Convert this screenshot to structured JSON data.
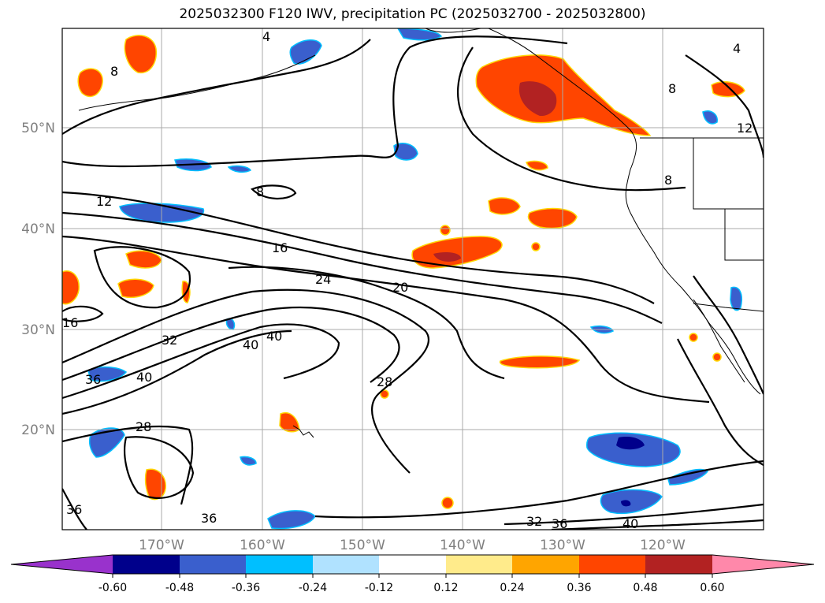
{
  "title": "2025032300 F120 IWV, precipitation PC (2025032700 - 2025032800)",
  "map": {
    "lat_labels": [
      "50°N",
      "40°N",
      "30°N",
      "20°N"
    ],
    "lon_labels": [
      "170°W",
      "160°W",
      "150°W",
      "140°W",
      "130°W",
      "120°W"
    ],
    "contour_labels": [
      "8",
      "8",
      "8",
      "8",
      "4",
      "4",
      "12",
      "12",
      "16",
      "16",
      "20",
      "24",
      "28",
      "28",
      "32",
      "32",
      "36",
      "36",
      "36",
      "36",
      "40",
      "40",
      "40",
      "40"
    ]
  },
  "colorbar": {
    "ticks": [
      "-0.60",
      "-0.48",
      "-0.36",
      "-0.24",
      "-0.12",
      "0.12",
      "0.24",
      "0.36",
      "0.48",
      "0.60"
    ],
    "colors": [
      "#9932cc",
      "#00008b",
      "#3a5fcd",
      "#00bfff",
      "#b0e2ff",
      "#ffffff",
      "#ffeb8b",
      "#ffa500",
      "#ff4500",
      "#b22222",
      "#ff88aa"
    ]
  }
}
